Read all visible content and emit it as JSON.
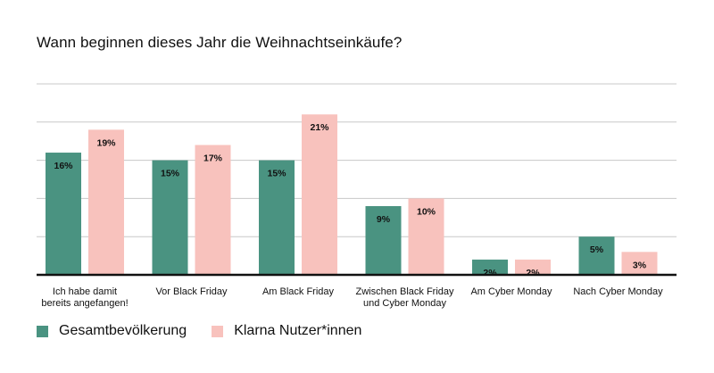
{
  "title": "Wann beginnen dieses Jahr die Weihnachtseinkäufe?",
  "colors": {
    "series1": "#4a9381",
    "series2": "#f8c2bd",
    "grid": "#c8c8c8",
    "axis": "#111111"
  },
  "chart_data": {
    "type": "bar",
    "title": "Wann beginnen dieses Jahr die Weihnachtseinkäufe?",
    "categories": [
      [
        "Ich habe damit",
        "bereits angefangen!"
      ],
      [
        "Vor Black Friday"
      ],
      [
        "Am Black Friday"
      ],
      [
        "Zwischen Black Friday",
        "und Cyber Monday"
      ],
      [
        "Am Cyber Monday"
      ],
      [
        "Nach Cyber Monday"
      ]
    ],
    "series": [
      {
        "name": "Gesamtbevölkerung",
        "values": [
          16,
          15,
          15,
          9,
          2,
          5
        ],
        "labels": [
          "16%",
          "15%",
          "15%",
          "9%",
          "2%",
          "5%"
        ]
      },
      {
        "name": "Klarna Nutzer*innen",
        "values": [
          19,
          17,
          21,
          10,
          2,
          3
        ],
        "labels": [
          "19%",
          "17%",
          "21%",
          "10%",
          "2%",
          "3%"
        ]
      }
    ],
    "ylim": [
      0,
      25
    ],
    "grid": true,
    "legend": "bottom-left"
  }
}
